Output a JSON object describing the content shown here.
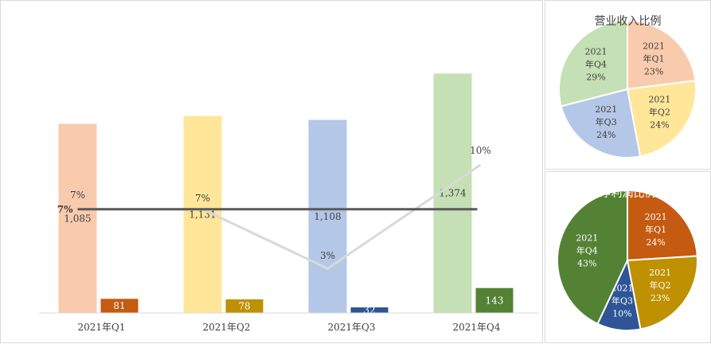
{
  "chart_data": [
    {
      "type": "bar",
      "categories": [
        "2021年Q1",
        "2021年Q2",
        "2021年Q3",
        "2021年Q4"
      ],
      "series": [
        {
          "values": [
            1085,
            1131,
            1108,
            1374
          ],
          "labels": [
            "1,085",
            "1,131",
            "1,108",
            "1,374"
          ],
          "colors": [
            "#f8cbad",
            "#ffe699",
            "#b4c7e7",
            "#c5e0b4"
          ]
        },
        {
          "values": [
            81,
            78,
            32,
            143
          ],
          "labels": [
            "81",
            "78",
            "32",
            "143"
          ],
          "colors": [
            "#c55a11",
            "#bf9000",
            "#2f5597",
            "#548235"
          ]
        }
      ],
      "lines": [
        {
          "values": [
            7,
            7,
            3,
            10
          ],
          "labels": [
            "7%",
            "7%",
            "3%",
            "10%"
          ],
          "color": "#d9d9d9"
        },
        {
          "values": [
            7,
            7,
            7,
            7
          ],
          "label": "7%",
          "color": "#595959"
        }
      ],
      "ylim": [
        0,
        1700
      ],
      "line_ylim": [
        0,
        20
      ],
      "grid": false
    },
    {
      "type": "pie",
      "title": "营业收入比例",
      "slices": [
        {
          "year": "2021",
          "quarter": "年Q1",
          "value": 23,
          "label": "23%",
          "color": "#f8cbad"
        },
        {
          "year": "2021",
          "quarter": "年Q2",
          "value": 24,
          "label": "24%",
          "color": "#ffe699"
        },
        {
          "year": "2021",
          "quarter": "年Q3",
          "value": 24,
          "label": "24%",
          "color": "#b4c7e7"
        },
        {
          "year": "2021",
          "quarter": "年Q4",
          "value": 29,
          "label": "29%",
          "color": "#c5e0b4"
        }
      ],
      "label_color": "#404040"
    },
    {
      "type": "pie",
      "title": "净利润比例",
      "slices": [
        {
          "year": "2021",
          "quarter": "年Q1",
          "value": 24,
          "label": "24%",
          "color": "#c55a11"
        },
        {
          "year": "2021",
          "quarter": "年Q2",
          "value": 23,
          "label": "23%",
          "color": "#bf9000"
        },
        {
          "year": "2021",
          "quarter": "年Q3",
          "value": 10,
          "label": "10%",
          "color": "#2f5597"
        },
        {
          "year": "2021",
          "quarter": "年Q4",
          "value": 43,
          "label": "43%",
          "color": "#548235"
        }
      ],
      "label_color": "#ffffff"
    }
  ]
}
